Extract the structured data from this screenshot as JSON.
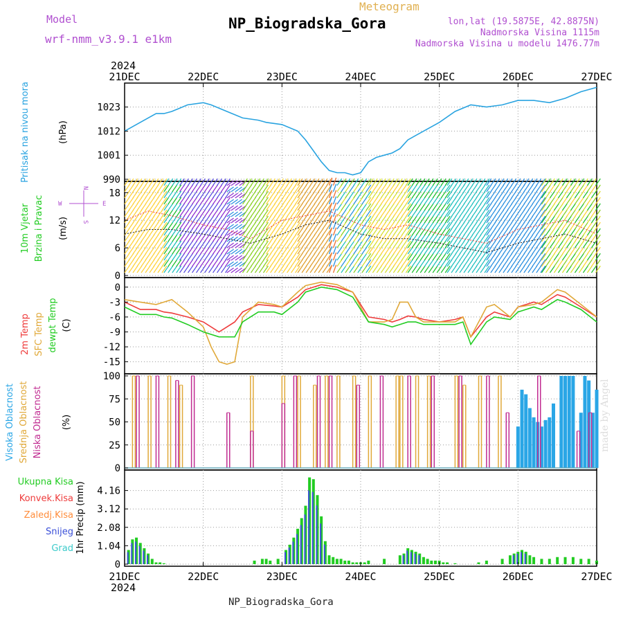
{
  "header": {
    "model_label": "Model",
    "model_name": "wrf-nmm_v3.9.1 e1km",
    "meteogram_label": "Meteogram",
    "station_title": "NP_Biogradska_Gora",
    "lonlat": "lon,lat (19.5875E, 42.8875N)",
    "elevation": "Nadmorska Visina 1115m",
    "model_elevation": "Nadmorska Visina u modelu 1476.77m",
    "footer_station": "NP_Biogradska_Gora",
    "credit": "made by Angel"
  },
  "colors": {
    "pressure": "#29a3e0",
    "temp2m": "#ee3b3b",
    "sfc": "#e0a838",
    "dewpt": "#22cc22",
    "high_cloud": "#2aa6e6",
    "mid_cloud": "#e0a838",
    "low_cloud": "#c02a90",
    "total_precip": "#22cc22",
    "convective": "#ee3b3b",
    "freezing": "#ff8c3a",
    "snow": "#3a4fd8",
    "graupel": "#3acaca"
  },
  "chart_data": [
    {
      "type": "line",
      "panel": "pressure",
      "title": "NP_Biogradska_Gora",
      "year": "2024",
      "ylabel_lines": [
        "Pritisak na nivou mora",
        "(hPa)"
      ],
      "x_ticks": [
        "21DEC",
        "22DEC",
        "23DEC",
        "24DEC",
        "25DEC",
        "26DEC",
        "27DEC"
      ],
      "ylim": [
        990,
        1033
      ],
      "y_ticks": [
        990,
        1001,
        1012,
        1023
      ],
      "grid": true,
      "series": [
        {
          "name": "Pritisak na nivou mora",
          "color_key": "pressure",
          "x": [
            0,
            0.1,
            0.25,
            0.4,
            0.5,
            0.6,
            0.8,
            1.0,
            1.1,
            1.3,
            1.5,
            1.7,
            1.8,
            2.0,
            2.2,
            2.3,
            2.4,
            2.5,
            2.6,
            2.7,
            2.8,
            2.9,
            3.0,
            3.1,
            3.2,
            3.3,
            3.4,
            3.5,
            3.6,
            3.7,
            3.8,
            4.0,
            4.2,
            4.4,
            4.6,
            4.8,
            5.0,
            5.2,
            5.4,
            5.6,
            5.8,
            6.0
          ],
          "values": [
            1012,
            1014,
            1017,
            1020,
            1020,
            1021,
            1024,
            1025,
            1024,
            1021,
            1018,
            1017,
            1016,
            1015,
            1012,
            1008,
            1003,
            998,
            994,
            993,
            993,
            992,
            993,
            998,
            1000,
            1001,
            1002,
            1004,
            1008,
            1010,
            1012,
            1016,
            1021,
            1024,
            1023,
            1024,
            1026,
            1026,
            1025,
            1027,
            1030,
            1032
          ]
        }
      ]
    },
    {
      "type": "line",
      "panel": "wind",
      "ylabel_lines": [
        "10m Vjetar",
        "Brzina i Pravac",
        "(m/s)"
      ],
      "compass_labels": [
        "N",
        "W",
        "E",
        "S"
      ],
      "ylim": [
        0,
        20
      ],
      "y_ticks": [
        0,
        6,
        12,
        18
      ],
      "grid": true,
      "series": [
        {
          "name": "",
          "color": "#111111",
          "x": [
            0,
            0.3,
            0.6,
            1.0,
            1.3,
            1.6,
            2.0,
            2.3,
            2.6,
            3.0,
            3.3,
            3.6,
            4.0,
            4.3,
            4.6,
            5.0,
            5.3,
            5.6,
            6.0
          ],
          "values": [
            9,
            10,
            10,
            9,
            8,
            7,
            9,
            11,
            12,
            9,
            8,
            8,
            7,
            6,
            5,
            7,
            8,
            9,
            7
          ]
        },
        {
          "name": "",
          "color": "#ee3b3b",
          "x": [
            0,
            0.3,
            0.6,
            1.0,
            1.3,
            1.6,
            2.0,
            2.3,
            2.6,
            3.0,
            3.3,
            3.6,
            4.0,
            4.3,
            4.6,
            5.0,
            5.3,
            5.6,
            6.0
          ],
          "values": [
            12,
            14,
            13,
            11,
            10,
            8,
            12,
            13,
            14,
            11,
            10,
            11,
            9,
            8,
            7,
            10,
            11,
            12,
            9
          ]
        }
      ]
    },
    {
      "type": "line",
      "panel": "temperature",
      "ylabel_lines": [
        "2m Temp",
        "SFC Temp",
        "dewpt Temp",
        "(C)"
      ],
      "ylim": [
        -17,
        1.5
      ],
      "y_ticks": [
        0,
        -3,
        -6,
        -9,
        -12,
        -15
      ],
      "grid": true,
      "series": [
        {
          "name": "2m Temp",
          "color_key": "temp2m",
          "x": [
            0,
            0.2,
            0.4,
            0.5,
            0.6,
            0.8,
            1.0,
            1.2,
            1.4,
            1.5,
            1.7,
            1.9,
            2.0,
            2.2,
            2.3,
            2.5,
            2.7,
            2.9,
            3.1,
            3.3,
            3.4,
            3.5,
            3.6,
            3.7,
            3.8,
            4.0,
            4.2,
            4.3,
            4.4,
            4.6,
            4.7,
            4.9,
            5.0,
            5.2,
            5.3,
            5.5,
            5.6,
            5.8,
            6.0
          ],
          "values": [
            -3,
            -4.5,
            -4.5,
            -5,
            -5.2,
            -6,
            -7,
            -9,
            -7,
            -5,
            -3.5,
            -3.8,
            -4,
            -2,
            -0.5,
            0.5,
            0,
            -1,
            -6,
            -6.5,
            -7,
            -6.5,
            -5.8,
            -6,
            -6.5,
            -7,
            -6.5,
            -6,
            -10,
            -6,
            -5,
            -6,
            -4,
            -3,
            -3.5,
            -1.5,
            -2,
            -4,
            -6
          ]
        },
        {
          "name": "SFC Temp",
          "color_key": "sfc",
          "x": [
            0,
            0.2,
            0.4,
            0.5,
            0.6,
            0.8,
            1.0,
            1.1,
            1.2,
            1.3,
            1.4,
            1.5,
            1.7,
            1.9,
            2.0,
            2.2,
            2.3,
            2.5,
            2.7,
            2.9,
            3.1,
            3.3,
            3.4,
            3.5,
            3.6,
            3.7,
            3.8,
            4.0,
            4.2,
            4.3,
            4.4,
            4.6,
            4.7,
            4.9,
            5.0,
            5.2,
            5.3,
            5.5,
            5.6,
            5.8,
            6.0
          ],
          "values": [
            -2.5,
            -3,
            -3.5,
            -3,
            -2.5,
            -5,
            -8,
            -12,
            -15,
            -15.5,
            -15,
            -6,
            -3,
            -3.5,
            -4,
            -1,
            0.3,
            1,
            0.5,
            -1,
            -7,
            -7,
            -6.5,
            -3,
            -3,
            -6,
            -7,
            -7,
            -7,
            -6,
            -10,
            -4,
            -3.5,
            -6,
            -4,
            -3.5,
            -3,
            -0.5,
            -1,
            -3.5,
            -6
          ]
        },
        {
          "name": "dewpt Temp",
          "color_key": "dewpt",
          "x": [
            0,
            0.2,
            0.4,
            0.5,
            0.6,
            0.8,
            1.0,
            1.2,
            1.4,
            1.5,
            1.7,
            1.9,
            2.0,
            2.2,
            2.3,
            2.5,
            2.7,
            2.9,
            3.1,
            3.3,
            3.4,
            3.5,
            3.6,
            3.7,
            3.8,
            4.0,
            4.2,
            4.3,
            4.4,
            4.6,
            4.7,
            4.9,
            5.0,
            5.2,
            5.3,
            5.5,
            5.6,
            5.8,
            6.0
          ],
          "values": [
            -4,
            -5.5,
            -5.5,
            -6,
            -6.2,
            -7.5,
            -9,
            -10,
            -10,
            -7,
            -5,
            -5,
            -5.5,
            -3,
            -1,
            0,
            -0.5,
            -2,
            -7,
            -7.5,
            -8,
            -7.5,
            -7,
            -7,
            -7.5,
            -7.5,
            -7.5,
            -7,
            -11.5,
            -7,
            -6,
            -6.5,
            -5,
            -4,
            -4.5,
            -2.5,
            -3,
            -4.5,
            -7
          ]
        }
      ]
    },
    {
      "type": "bar",
      "panel": "cloud",
      "ylabel_lines": [
        "Visoka Oblacnost",
        "Srednja Oblacnost",
        "Niska Oblacnost",
        "(%)"
      ],
      "ylim": [
        0,
        100
      ],
      "y_ticks": [
        0,
        25,
        50,
        75,
        100
      ],
      "grid": true,
      "series": [
        {
          "name": "Visoka Oblacnost",
          "color_key": "high_cloud",
          "values": [
            [
              5.0,
              45
            ],
            [
              5.05,
              85
            ],
            [
              5.1,
              80
            ],
            [
              5.15,
              65
            ],
            [
              5.2,
              55
            ],
            [
              5.25,
              50
            ],
            [
              5.3,
              45
            ],
            [
              5.35,
              52
            ],
            [
              5.4,
              55
            ],
            [
              5.45,
              70
            ],
            [
              5.55,
              100
            ],
            [
              5.6,
              100
            ],
            [
              5.65,
              100
            ],
            [
              5.7,
              100
            ],
            [
              5.8,
              60
            ],
            [
              5.85,
              100
            ],
            [
              5.9,
              95
            ],
            [
              5.95,
              60
            ],
            [
              6.0,
              85
            ]
          ]
        },
        {
          "name": "Srednja Oblacnost",
          "color_key": "mid_cloud",
          "values": [
            [
              0.1,
              100
            ],
            [
              0.3,
              100
            ],
            [
              0.55,
              100
            ],
            [
              0.7,
              90
            ],
            [
              1.6,
              100
            ],
            [
              2.0,
              100
            ],
            [
              2.2,
              100
            ],
            [
              2.4,
              90
            ],
            [
              2.55,
              100
            ],
            [
              2.7,
              100
            ],
            [
              2.9,
              100
            ],
            [
              3.1,
              100
            ],
            [
              3.45,
              100
            ],
            [
              3.5,
              100
            ],
            [
              3.7,
              100
            ],
            [
              3.85,
              100
            ],
            [
              4.2,
              100
            ],
            [
              4.3,
              90
            ],
            [
              4.5,
              100
            ],
            [
              4.75,
              100
            ]
          ]
        },
        {
          "name": "Niska Oblacnost",
          "color_key": "low_cloud",
          "values": [
            [
              0.15,
              100
            ],
            [
              0.4,
              100
            ],
            [
              0.65,
              95
            ],
            [
              0.85,
              100
            ],
            [
              1.3,
              60
            ],
            [
              1.6,
              40
            ],
            [
              2.0,
              70
            ],
            [
              2.15,
              100
            ],
            [
              2.45,
              100
            ],
            [
              2.6,
              100
            ],
            [
              2.95,
              90
            ],
            [
              3.25,
              100
            ],
            [
              3.6,
              100
            ],
            [
              3.9,
              100
            ],
            [
              4.25,
              100
            ],
            [
              4.6,
              100
            ],
            [
              4.85,
              60
            ],
            [
              5.25,
              100
            ],
            [
              5.75,
              40
            ],
            [
              5.9,
              60
            ]
          ]
        }
      ]
    },
    {
      "type": "bar",
      "panel": "precipitation",
      "ylabel_lines": [
        "1hr Precip (mm)"
      ],
      "legend_labels": [
        "Ukupna Kisa",
        "Konvek.Kisa",
        "Zaledj.Kisa",
        "Snijeg",
        "Grad"
      ],
      "ylim": [
        0,
        5.2
      ],
      "y_ticks": [
        0,
        1.04,
        2.08,
        3.12,
        4.16
      ],
      "x_ticks": [
        "21DEC",
        "22DEC",
        "23DEC",
        "24DEC",
        "25DEC",
        "26DEC",
        "27DEC"
      ],
      "grid": true,
      "series": [
        {
          "name": "Ukupna Kisa",
          "color_key": "total_precip",
          "x": [
            0.05,
            0.1,
            0.15,
            0.2,
            0.25,
            0.3,
            0.35,
            0.4,
            0.45,
            0.5,
            1.65,
            1.75,
            1.8,
            1.85,
            1.95,
            2.05,
            2.1,
            2.15,
            2.2,
            2.25,
            2.3,
            2.35,
            2.4,
            2.45,
            2.5,
            2.55,
            2.6,
            2.65,
            2.7,
            2.75,
            2.8,
            2.85,
            2.9,
            2.95,
            3.0,
            3.05,
            3.1,
            3.3,
            3.5,
            3.55,
            3.6,
            3.65,
            3.7,
            3.75,
            3.8,
            3.85,
            3.9,
            3.95,
            4.0,
            4.05,
            4.1,
            4.2,
            4.5,
            4.6,
            4.8,
            4.9,
            4.95,
            5.0,
            5.05,
            5.1,
            5.15,
            5.2,
            5.3,
            5.4,
            5.5,
            5.6,
            5.7,
            5.8,
            5.9,
            6.0
          ],
          "values": [
            0.8,
            1.4,
            1.5,
            1.2,
            0.9,
            0.6,
            0.3,
            0.1,
            0.1,
            0.05,
            0.2,
            0.3,
            0.3,
            0.2,
            0.3,
            0.8,
            1.1,
            1.5,
            2.0,
            2.6,
            3.3,
            4.9,
            4.8,
            3.9,
            2.7,
            1.3,
            0.5,
            0.4,
            0.3,
            0.3,
            0.2,
            0.2,
            0.1,
            0.1,
            0.1,
            0.1,
            0.2,
            0.3,
            0.5,
            0.6,
            0.9,
            0.8,
            0.7,
            0.6,
            0.4,
            0.3,
            0.2,
            0.2,
            0.2,
            0.1,
            0.1,
            0.05,
            0.1,
            0.2,
            0.3,
            0.5,
            0.6,
            0.7,
            0.8,
            0.7,
            0.5,
            0.4,
            0.3,
            0.3,
            0.4,
            0.4,
            0.4,
            0.3,
            0.3,
            0.2
          ]
        }
      ]
    }
  ]
}
